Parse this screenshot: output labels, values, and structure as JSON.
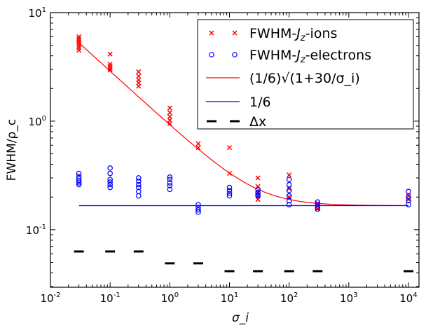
{
  "chart_data": {
    "type": "scatter",
    "xscale": "log",
    "yscale": "log",
    "xlim": [
      0.01,
      15000
    ],
    "ylim": [
      0.0295,
      10
    ],
    "xlabel": "σ_i",
    "ylabel": "FWHM/ρ_c",
    "xticks": [
      {
        "value": 0.01,
        "base": "10",
        "exp": "-2"
      },
      {
        "value": 0.1,
        "base": "10",
        "exp": "-1"
      },
      {
        "value": 1,
        "base": "10",
        "exp": "0"
      },
      {
        "value": 10,
        "base": "10",
        "exp": "1"
      },
      {
        "value": 100,
        "base": "10",
        "exp": "2"
      },
      {
        "value": 1000,
        "base": "10",
        "exp": "3"
      },
      {
        "value": 10000,
        "base": "10",
        "exp": "4"
      }
    ],
    "yticks": [
      {
        "value": 0.1,
        "base": "10",
        "exp": "-1"
      },
      {
        "value": 1,
        "base": "10",
        "exp": "0"
      },
      {
        "value": 10,
        "base": "10",
        "exp": "1"
      }
    ],
    "series": [
      {
        "name": "FWHM-J_z-ions",
        "legend_label": "FWHM-",
        "legend_sym": "J",
        "legend_sub": "z",
        "legend_suffix": "-ions",
        "marker": "x",
        "color": "#ff0000",
        "points": [
          [
            0.03,
            6.0
          ],
          [
            0.03,
            5.75
          ],
          [
            0.03,
            5.5
          ],
          [
            0.03,
            5.25
          ],
          [
            0.03,
            5.0
          ],
          [
            0.03,
            4.75
          ],
          [
            0.03,
            4.5
          ],
          [
            0.1,
            4.15
          ],
          [
            0.1,
            3.35
          ],
          [
            0.1,
            3.2
          ],
          [
            0.1,
            3.05
          ],
          [
            0.1,
            2.95
          ],
          [
            0.3,
            2.85
          ],
          [
            0.3,
            2.6
          ],
          [
            0.3,
            2.4
          ],
          [
            0.3,
            2.25
          ],
          [
            0.3,
            2.1
          ],
          [
            1,
            1.32
          ],
          [
            1,
            1.2
          ],
          [
            1,
            1.1
          ],
          [
            1,
            1.02
          ],
          [
            1,
            0.95
          ],
          [
            3,
            0.62
          ],
          [
            3,
            0.57
          ],
          [
            10,
            0.57
          ],
          [
            10,
            0.33
          ],
          [
            30,
            0.3
          ],
          [
            30,
            0.25
          ],
          [
            30,
            0.22
          ],
          [
            30,
            0.205
          ],
          [
            30,
            0.19
          ],
          [
            100,
            0.32
          ],
          [
            100,
            0.24
          ],
          [
            100,
            0.2
          ],
          [
            300,
            0.175
          ],
          [
            300,
            0.165
          ],
          [
            300,
            0.155
          ],
          [
            10000,
            0.205
          ],
          [
            10000,
            0.19
          ]
        ]
      },
      {
        "name": "FWHM-J_z-electrons",
        "legend_label": "FWHM-",
        "legend_sym": "J",
        "legend_sub": "z",
        "legend_suffix": "-electrons",
        "marker": "o",
        "color": "#0000ff",
        "points": [
          [
            0.03,
            0.33
          ],
          [
            0.03,
            0.31
          ],
          [
            0.03,
            0.295
          ],
          [
            0.03,
            0.28
          ],
          [
            0.03,
            0.27
          ],
          [
            0.03,
            0.26
          ],
          [
            0.1,
            0.37
          ],
          [
            0.1,
            0.33
          ],
          [
            0.1,
            0.29
          ],
          [
            0.1,
            0.275
          ],
          [
            0.1,
            0.26
          ],
          [
            0.1,
            0.245
          ],
          [
            0.3,
            0.3
          ],
          [
            0.3,
            0.28
          ],
          [
            0.3,
            0.26
          ],
          [
            0.3,
            0.245
          ],
          [
            0.3,
            0.225
          ],
          [
            0.3,
            0.205
          ],
          [
            1,
            0.305
          ],
          [
            1,
            0.29
          ],
          [
            1,
            0.27
          ],
          [
            1,
            0.255
          ],
          [
            1,
            0.235
          ],
          [
            3,
            0.17
          ],
          [
            3,
            0.16
          ],
          [
            3,
            0.152
          ],
          [
            3,
            0.145
          ],
          [
            10,
            0.245
          ],
          [
            10,
            0.23
          ],
          [
            10,
            0.215
          ],
          [
            10,
            0.205
          ],
          [
            30,
            0.235
          ],
          [
            30,
            0.22
          ],
          [
            30,
            0.21
          ],
          [
            30,
            0.205
          ],
          [
            100,
            0.29
          ],
          [
            100,
            0.26
          ],
          [
            100,
            0.23
          ],
          [
            100,
            0.205
          ],
          [
            100,
            0.185
          ],
          [
            100,
            0.17
          ],
          [
            300,
            0.18
          ],
          [
            300,
            0.17
          ],
          [
            300,
            0.16
          ],
          [
            300,
            0.155
          ],
          [
            10000,
            0.225
          ],
          [
            10000,
            0.2
          ],
          [
            10000,
            0.185
          ],
          [
            10000,
            0.17
          ]
        ]
      },
      {
        "name": "(1/6)sqrt(1+30/σ_i)",
        "legend_label": "(1/6)√(1+30/σ_i)",
        "marker": "line",
        "color": "#ff0000",
        "formula": {
          "coef": 0.16667,
          "a": 30
        },
        "x_range": [
          0.03,
          10000
        ]
      },
      {
        "name": "1/6",
        "legend_label": "1/6",
        "marker": "line",
        "color": "#0000ff",
        "constant": 0.16667,
        "x_range": [
          0.03,
          10000
        ]
      },
      {
        "name": "Δx",
        "legend_label": "Δx",
        "marker": "dash",
        "color": "#000000",
        "points": [
          [
            0.03,
            0.063
          ],
          [
            0.1,
            0.063
          ],
          [
            0.3,
            0.063
          ],
          [
            1,
            0.049
          ],
          [
            3,
            0.049
          ],
          [
            10,
            0.0415
          ],
          [
            30,
            0.0415
          ],
          [
            100,
            0.0415
          ],
          [
            300,
            0.0415
          ],
          [
            10000,
            0.0415
          ]
        ]
      }
    ]
  }
}
